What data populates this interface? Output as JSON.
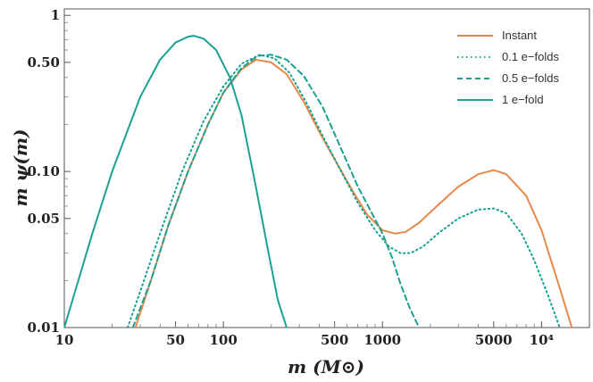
{
  "chart_data": {
    "type": "line",
    "title": "",
    "xlabel": "m (M⊙)",
    "ylabel": "m ψ(m)",
    "xscale": "log",
    "yscale": "log",
    "xlim": [
      10,
      20000
    ],
    "ylim": [
      0.01,
      1.1
    ],
    "grid": false,
    "legend_position": "top-right",
    "x_ticks": [
      {
        "value": 10,
        "label": "10"
      },
      {
        "value": 50,
        "label": "50"
      },
      {
        "value": 100,
        "label": "100"
      },
      {
        "value": 500,
        "label": "500"
      },
      {
        "value": 1000,
        "label": "1000"
      },
      {
        "value": 5000,
        "label": "5000"
      },
      {
        "value": 10000,
        "label": "10⁴"
      }
    ],
    "y_ticks": [
      {
        "value": 0.01,
        "label": "0.01"
      },
      {
        "value": 0.05,
        "label": "0.05"
      },
      {
        "value": 0.1,
        "label": "0.10"
      },
      {
        "value": 0.5,
        "label": "0.50"
      },
      {
        "value": 1,
        "label": "1"
      }
    ],
    "series": [
      {
        "name": "Instant",
        "color": "#e8894b",
        "dash": "solid",
        "x": [
          28,
          35,
          45,
          60,
          80,
          100,
          130,
          160,
          200,
          250,
          320,
          400,
          500,
          650,
          800,
          1000,
          1200,
          1400,
          1700,
          2200,
          3000,
          4000,
          5000,
          6000,
          8000,
          10000,
          13000,
          15500
        ],
        "y": [
          0.01,
          0.02,
          0.045,
          0.1,
          0.2,
          0.32,
          0.45,
          0.52,
          0.5,
          0.42,
          0.28,
          0.18,
          0.12,
          0.075,
          0.053,
          0.042,
          0.04,
          0.041,
          0.047,
          0.06,
          0.08,
          0.096,
          0.102,
          0.096,
          0.07,
          0.042,
          0.018,
          0.01
        ]
      },
      {
        "name": "0.1 e−folds",
        "color": "#1aa192",
        "dash": "dotted",
        "x": [
          25,
          30,
          40,
          55,
          75,
          100,
          130,
          170,
          210,
          260,
          330,
          420,
          550,
          700,
          900,
          1100,
          1300,
          1500,
          1800,
          2300,
          3000,
          4000,
          5000,
          6000,
          7500,
          9000,
          11000,
          13000
        ],
        "y": [
          0.01,
          0.017,
          0.04,
          0.1,
          0.21,
          0.35,
          0.49,
          0.56,
          0.53,
          0.43,
          0.28,
          0.17,
          0.1,
          0.063,
          0.042,
          0.033,
          0.03,
          0.03,
          0.033,
          0.041,
          0.05,
          0.057,
          0.058,
          0.054,
          0.04,
          0.027,
          0.016,
          0.01
        ]
      },
      {
        "name": "0.5 e−folds",
        "color": "#1aa192",
        "dash": "dashed",
        "x": [
          27,
          35,
          45,
          60,
          80,
          100,
          130,
          165,
          200,
          250,
          320,
          420,
          550,
          700,
          850,
          1000,
          1150,
          1300,
          1500,
          1700
        ],
        "y": [
          0.01,
          0.02,
          0.045,
          0.1,
          0.2,
          0.32,
          0.46,
          0.55,
          0.56,
          0.52,
          0.41,
          0.26,
          0.14,
          0.08,
          0.055,
          0.04,
          0.028,
          0.019,
          0.013,
          0.01
        ]
      },
      {
        "name": "1 e−fold",
        "color": "#1aa192",
        "dash": "solid",
        "x": [
          10,
          15,
          20,
          30,
          40,
          50,
          60,
          65,
          75,
          90,
          110,
          130,
          160,
          190,
          220,
          250
        ],
        "y": [
          0.01,
          0.04,
          0.1,
          0.3,
          0.52,
          0.67,
          0.73,
          0.74,
          0.71,
          0.6,
          0.4,
          0.23,
          0.08,
          0.032,
          0.015,
          0.01
        ]
      }
    ]
  }
}
